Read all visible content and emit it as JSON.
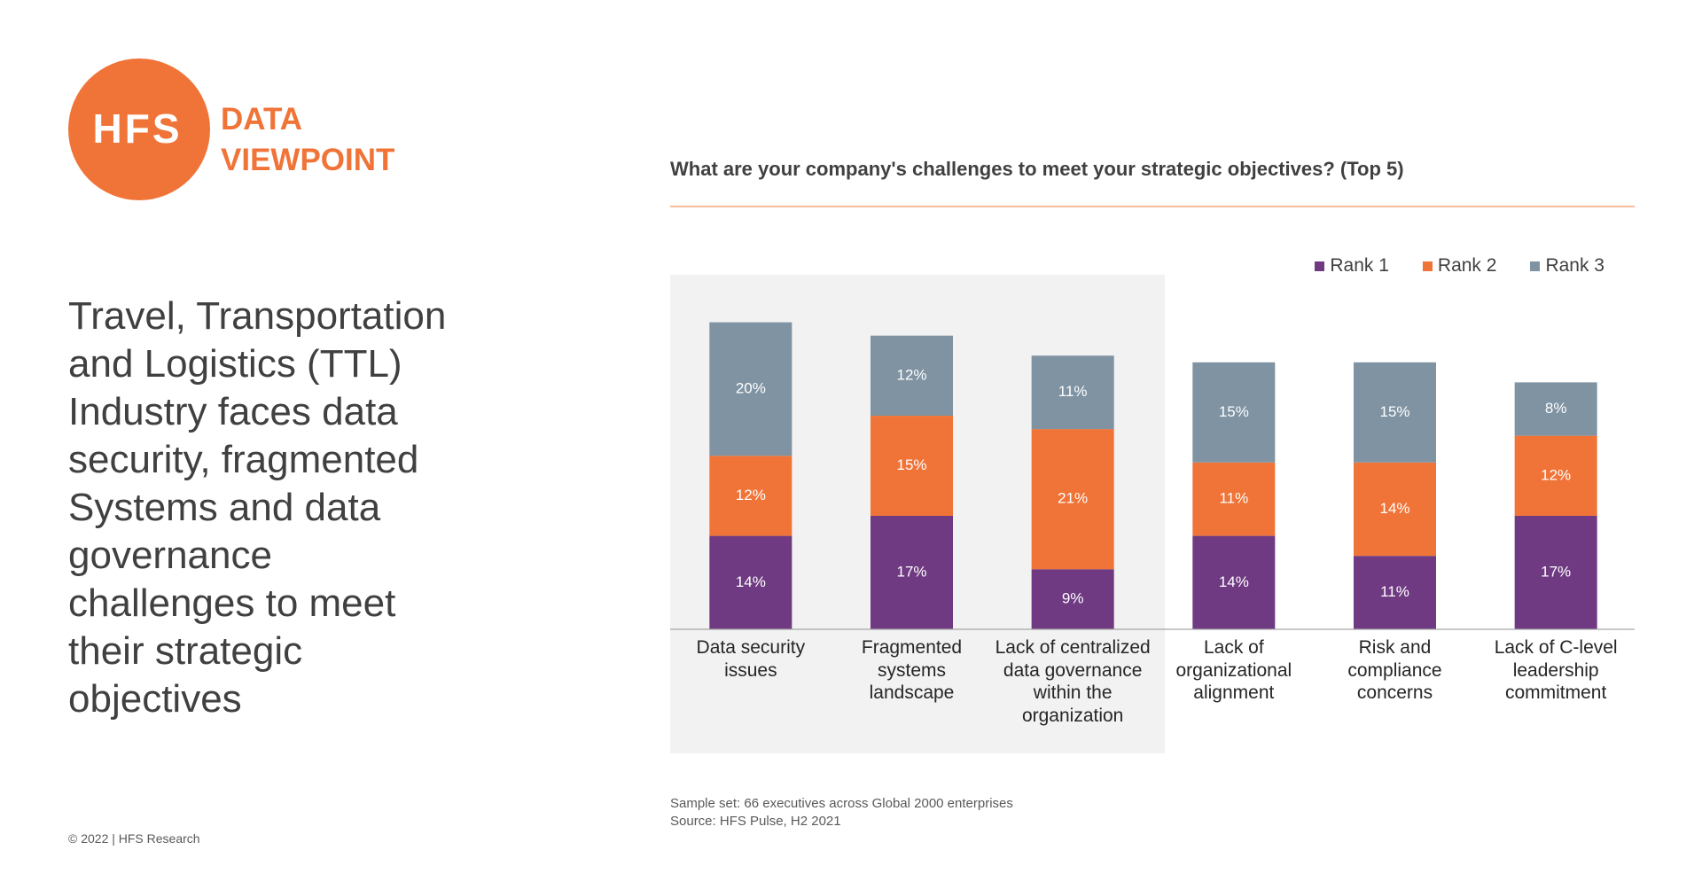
{
  "logo": {
    "mark": "HFS",
    "line1": "DATA",
    "line2": "VIEWPOINT"
  },
  "headline": "Travel, Transportation and Logistics (TTL) Industry faces data security, fragmented Systems and data governance challenges to meet their strategic objectives",
  "footer": "© 2022 | HFS Research",
  "chart_data": {
    "type": "bar",
    "stacked": true,
    "title": "What are your company's challenges to meet your strategic objectives? (Top 5)",
    "categories": [
      "Data security issues",
      "Fragmented systems landscape",
      "Lack of centralized data governance within the organization",
      "Lack of organizational alignment",
      "Risk and compliance concerns",
      "Lack of C-level leadership commitment"
    ],
    "series": [
      {
        "name": "Rank 1",
        "color": "#6f3a82",
        "values": [
          14,
          17,
          9,
          14,
          11,
          17
        ],
        "value_labels": [
          "14%",
          "17%",
          "9%",
          "14%",
          "11%",
          "17%"
        ]
      },
      {
        "name": "Rank 2",
        "color": "#f07438",
        "values": [
          12,
          15,
          21,
          11,
          14,
          12
        ],
        "value_labels": [
          "12%",
          "15%",
          "21%",
          "11%",
          "14%",
          "12%"
        ]
      },
      {
        "name": "Rank 3",
        "color": "#7f93a3",
        "values": [
          20,
          12,
          11,
          15,
          15,
          8
        ],
        "value_labels": [
          "20%",
          "12%",
          "11%",
          "15%",
          "15%",
          "8%"
        ]
      }
    ],
    "ylim": [
      0,
      50
    ],
    "legend": "top-right",
    "notes": [
      "Sample set: 66 executives across Global 2000 enterprises",
      "Source: HFS Pulse, H2 2021"
    ]
  }
}
